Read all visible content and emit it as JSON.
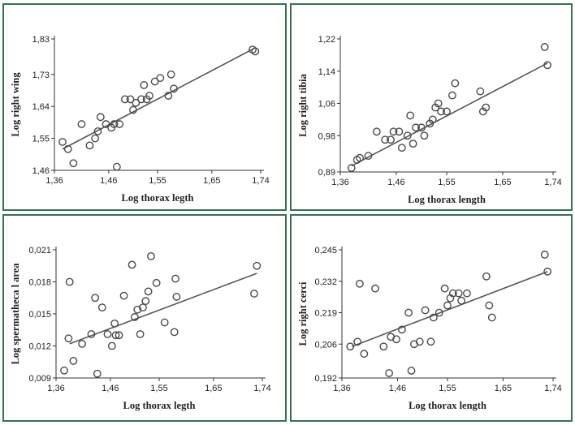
{
  "colors": {
    "frame": "#3a6e54",
    "axis": "#333333",
    "marker": "#4a4a4a",
    "fit_line": "#555555"
  },
  "chart_data": [
    {
      "type": "scatter",
      "xlabel": "Log thorax legth",
      "ylabel": "Log right wing",
      "xlim": [
        1.36,
        1.74
      ],
      "ylim": [
        1.46,
        1.83
      ],
      "xticks": [
        "1,36",
        "1,46",
        "1,55",
        "1,65",
        "1,74"
      ],
      "yticks": [
        "1,46",
        "1,55",
        "1,64",
        "1,73",
        "1,83"
      ],
      "xtick_values": [
        1.36,
        1.46,
        1.55,
        1.65,
        1.74
      ],
      "ytick_values": [
        1.46,
        1.55,
        1.64,
        1.73,
        1.83
      ],
      "points": [
        [
          1.375,
          1.54
        ],
        [
          1.385,
          1.52
        ],
        [
          1.395,
          1.48
        ],
        [
          1.41,
          1.59
        ],
        [
          1.425,
          1.53
        ],
        [
          1.435,
          1.55
        ],
        [
          1.44,
          1.57
        ],
        [
          1.445,
          1.61
        ],
        [
          1.455,
          1.59
        ],
        [
          1.465,
          1.58
        ],
        [
          1.47,
          1.59
        ],
        [
          1.475,
          1.47
        ],
        [
          1.48,
          1.59
        ],
        [
          1.49,
          1.66
        ],
        [
          1.5,
          1.66
        ],
        [
          1.505,
          1.63
        ],
        [
          1.51,
          1.65
        ],
        [
          1.52,
          1.66
        ],
        [
          1.525,
          1.7
        ],
        [
          1.53,
          1.66
        ],
        [
          1.535,
          1.67
        ],
        [
          1.545,
          1.71
        ],
        [
          1.555,
          1.72
        ],
        [
          1.57,
          1.67
        ],
        [
          1.575,
          1.73
        ],
        [
          1.58,
          1.69
        ],
        [
          1.725,
          1.8
        ],
        [
          1.73,
          1.795
        ]
      ],
      "fit": [
        [
          1.375,
          1.52
        ],
        [
          1.73,
          1.805
        ]
      ]
    },
    {
      "type": "scatter",
      "xlabel": "Log thorax length",
      "ylabel": "Log right tibia",
      "xlim": [
        1.36,
        1.74
      ],
      "ylim": [
        0.89,
        1.22
      ],
      "xticks": [
        "1,36",
        "1,46",
        "1,55",
        "1,65",
        "1,74"
      ],
      "yticks": [
        "0,89",
        "0,98",
        "1,06",
        "1,14",
        "1,22"
      ],
      "xtick_values": [
        1.36,
        1.46,
        1.55,
        1.65,
        1.74
      ],
      "ytick_values": [
        0.89,
        0.98,
        1.06,
        1.14,
        1.22
      ],
      "points": [
        [
          1.38,
          0.9
        ],
        [
          1.39,
          0.92
        ],
        [
          1.395,
          0.925
        ],
        [
          1.41,
          0.93
        ],
        [
          1.425,
          0.99
        ],
        [
          1.44,
          0.97
        ],
        [
          1.45,
          0.97
        ],
        [
          1.455,
          0.99
        ],
        [
          1.465,
          0.99
        ],
        [
          1.47,
          0.95
        ],
        [
          1.48,
          0.98
        ],
        [
          1.485,
          1.03
        ],
        [
          1.49,
          0.96
        ],
        [
          1.495,
          1.0
        ],
        [
          1.505,
          1.0
        ],
        [
          1.51,
          0.98
        ],
        [
          1.52,
          1.01
        ],
        [
          1.525,
          1.02
        ],
        [
          1.53,
          1.05
        ],
        [
          1.535,
          1.06
        ],
        [
          1.54,
          1.04
        ],
        [
          1.55,
          1.04
        ],
        [
          1.56,
          1.08
        ],
        [
          1.565,
          1.11
        ],
        [
          1.61,
          1.09
        ],
        [
          1.615,
          1.04
        ],
        [
          1.62,
          1.05
        ],
        [
          1.725,
          1.2
        ],
        [
          1.73,
          1.155
        ]
      ],
      "fit": [
        [
          1.38,
          0.905
        ],
        [
          1.73,
          1.16
        ]
      ]
    },
    {
      "type": "scatter",
      "xlabel": "Log thorax legth",
      "ylabel": "Log spermatheca l area",
      "xlim": [
        1.36,
        1.74
      ],
      "ylim": [
        0.009,
        0.021
      ],
      "xticks": [
        "1,36",
        "1,46",
        "1,55",
        "1,65",
        "1,74"
      ],
      "yticks": [
        "0,009",
        "0,012",
        "0,015",
        "0,018",
        "0,021"
      ],
      "xtick_values": [
        1.36,
        1.46,
        1.55,
        1.65,
        1.74
      ],
      "ytick_values": [
        0.009,
        0.012,
        0.015,
        0.018,
        0.021
      ],
      "points": [
        [
          1.375,
          0.0097
        ],
        [
          1.383,
          0.0127
        ],
        [
          1.385,
          0.018
        ],
        [
          1.392,
          0.0106
        ],
        [
          1.408,
          0.0122
        ],
        [
          1.425,
          0.0131
        ],
        [
          1.432,
          0.0165
        ],
        [
          1.436,
          0.0094
        ],
        [
          1.445,
          0.0156
        ],
        [
          1.455,
          0.0131
        ],
        [
          1.463,
          0.012
        ],
        [
          1.468,
          0.0141
        ],
        [
          1.47,
          0.013
        ],
        [
          1.476,
          0.013
        ],
        [
          1.485,
          0.0167
        ],
        [
          1.5,
          0.0196
        ],
        [
          1.505,
          0.0147
        ],
        [
          1.51,
          0.0154
        ],
        [
          1.515,
          0.0131
        ],
        [
          1.52,
          0.0156
        ],
        [
          1.525,
          0.0162
        ],
        [
          1.53,
          0.0171
        ],
        [
          1.535,
          0.0204
        ],
        [
          1.545,
          0.0179
        ],
        [
          1.56,
          0.0142
        ],
        [
          1.578,
          0.0133
        ],
        [
          1.58,
          0.0183
        ],
        [
          1.582,
          0.0166
        ],
        [
          1.725,
          0.0169
        ],
        [
          1.73,
          0.0195
        ]
      ],
      "fit": [
        [
          1.385,
          0.0122
        ],
        [
          1.73,
          0.0188
        ]
      ]
    },
    {
      "type": "scatter",
      "xlabel": "Log thorax length",
      "ylabel": "Log right cerci",
      "xlim": [
        1.36,
        1.74
      ],
      "ylim": [
        0.192,
        0.245
      ],
      "xticks": [
        "1,36",
        "1,46",
        "1,55",
        "1,65",
        "1,74"
      ],
      "yticks": [
        "0,192",
        "0,206",
        "0,219",
        "0,232",
        "0,245"
      ],
      "xtick_values": [
        1.36,
        1.46,
        1.55,
        1.65,
        1.74
      ],
      "ytick_values": [
        0.192,
        0.206,
        0.219,
        0.232,
        0.245
      ],
      "points": [
        [
          1.375,
          0.205
        ],
        [
          1.388,
          0.207
        ],
        [
          1.392,
          0.231
        ],
        [
          1.4,
          0.202
        ],
        [
          1.42,
          0.229
        ],
        [
          1.435,
          0.205
        ],
        [
          1.445,
          0.194
        ],
        [
          1.448,
          0.209
        ],
        [
          1.458,
          0.208
        ],
        [
          1.468,
          0.212
        ],
        [
          1.48,
          0.219
        ],
        [
          1.485,
          0.195
        ],
        [
          1.49,
          0.206
        ],
        [
          1.5,
          0.207
        ],
        [
          1.51,
          0.22
        ],
        [
          1.52,
          0.207
        ],
        [
          1.525,
          0.217
        ],
        [
          1.535,
          0.219
        ],
        [
          1.545,
          0.229
        ],
        [
          1.55,
          0.222
        ],
        [
          1.555,
          0.225
        ],
        [
          1.56,
          0.227
        ],
        [
          1.57,
          0.227
        ],
        [
          1.575,
          0.224
        ],
        [
          1.585,
          0.227
        ],
        [
          1.62,
          0.234
        ],
        [
          1.625,
          0.222
        ],
        [
          1.63,
          0.217
        ],
        [
          1.725,
          0.243
        ],
        [
          1.73,
          0.236
        ]
      ],
      "fit": [
        [
          1.378,
          0.205
        ],
        [
          1.73,
          0.236
        ]
      ]
    }
  ]
}
